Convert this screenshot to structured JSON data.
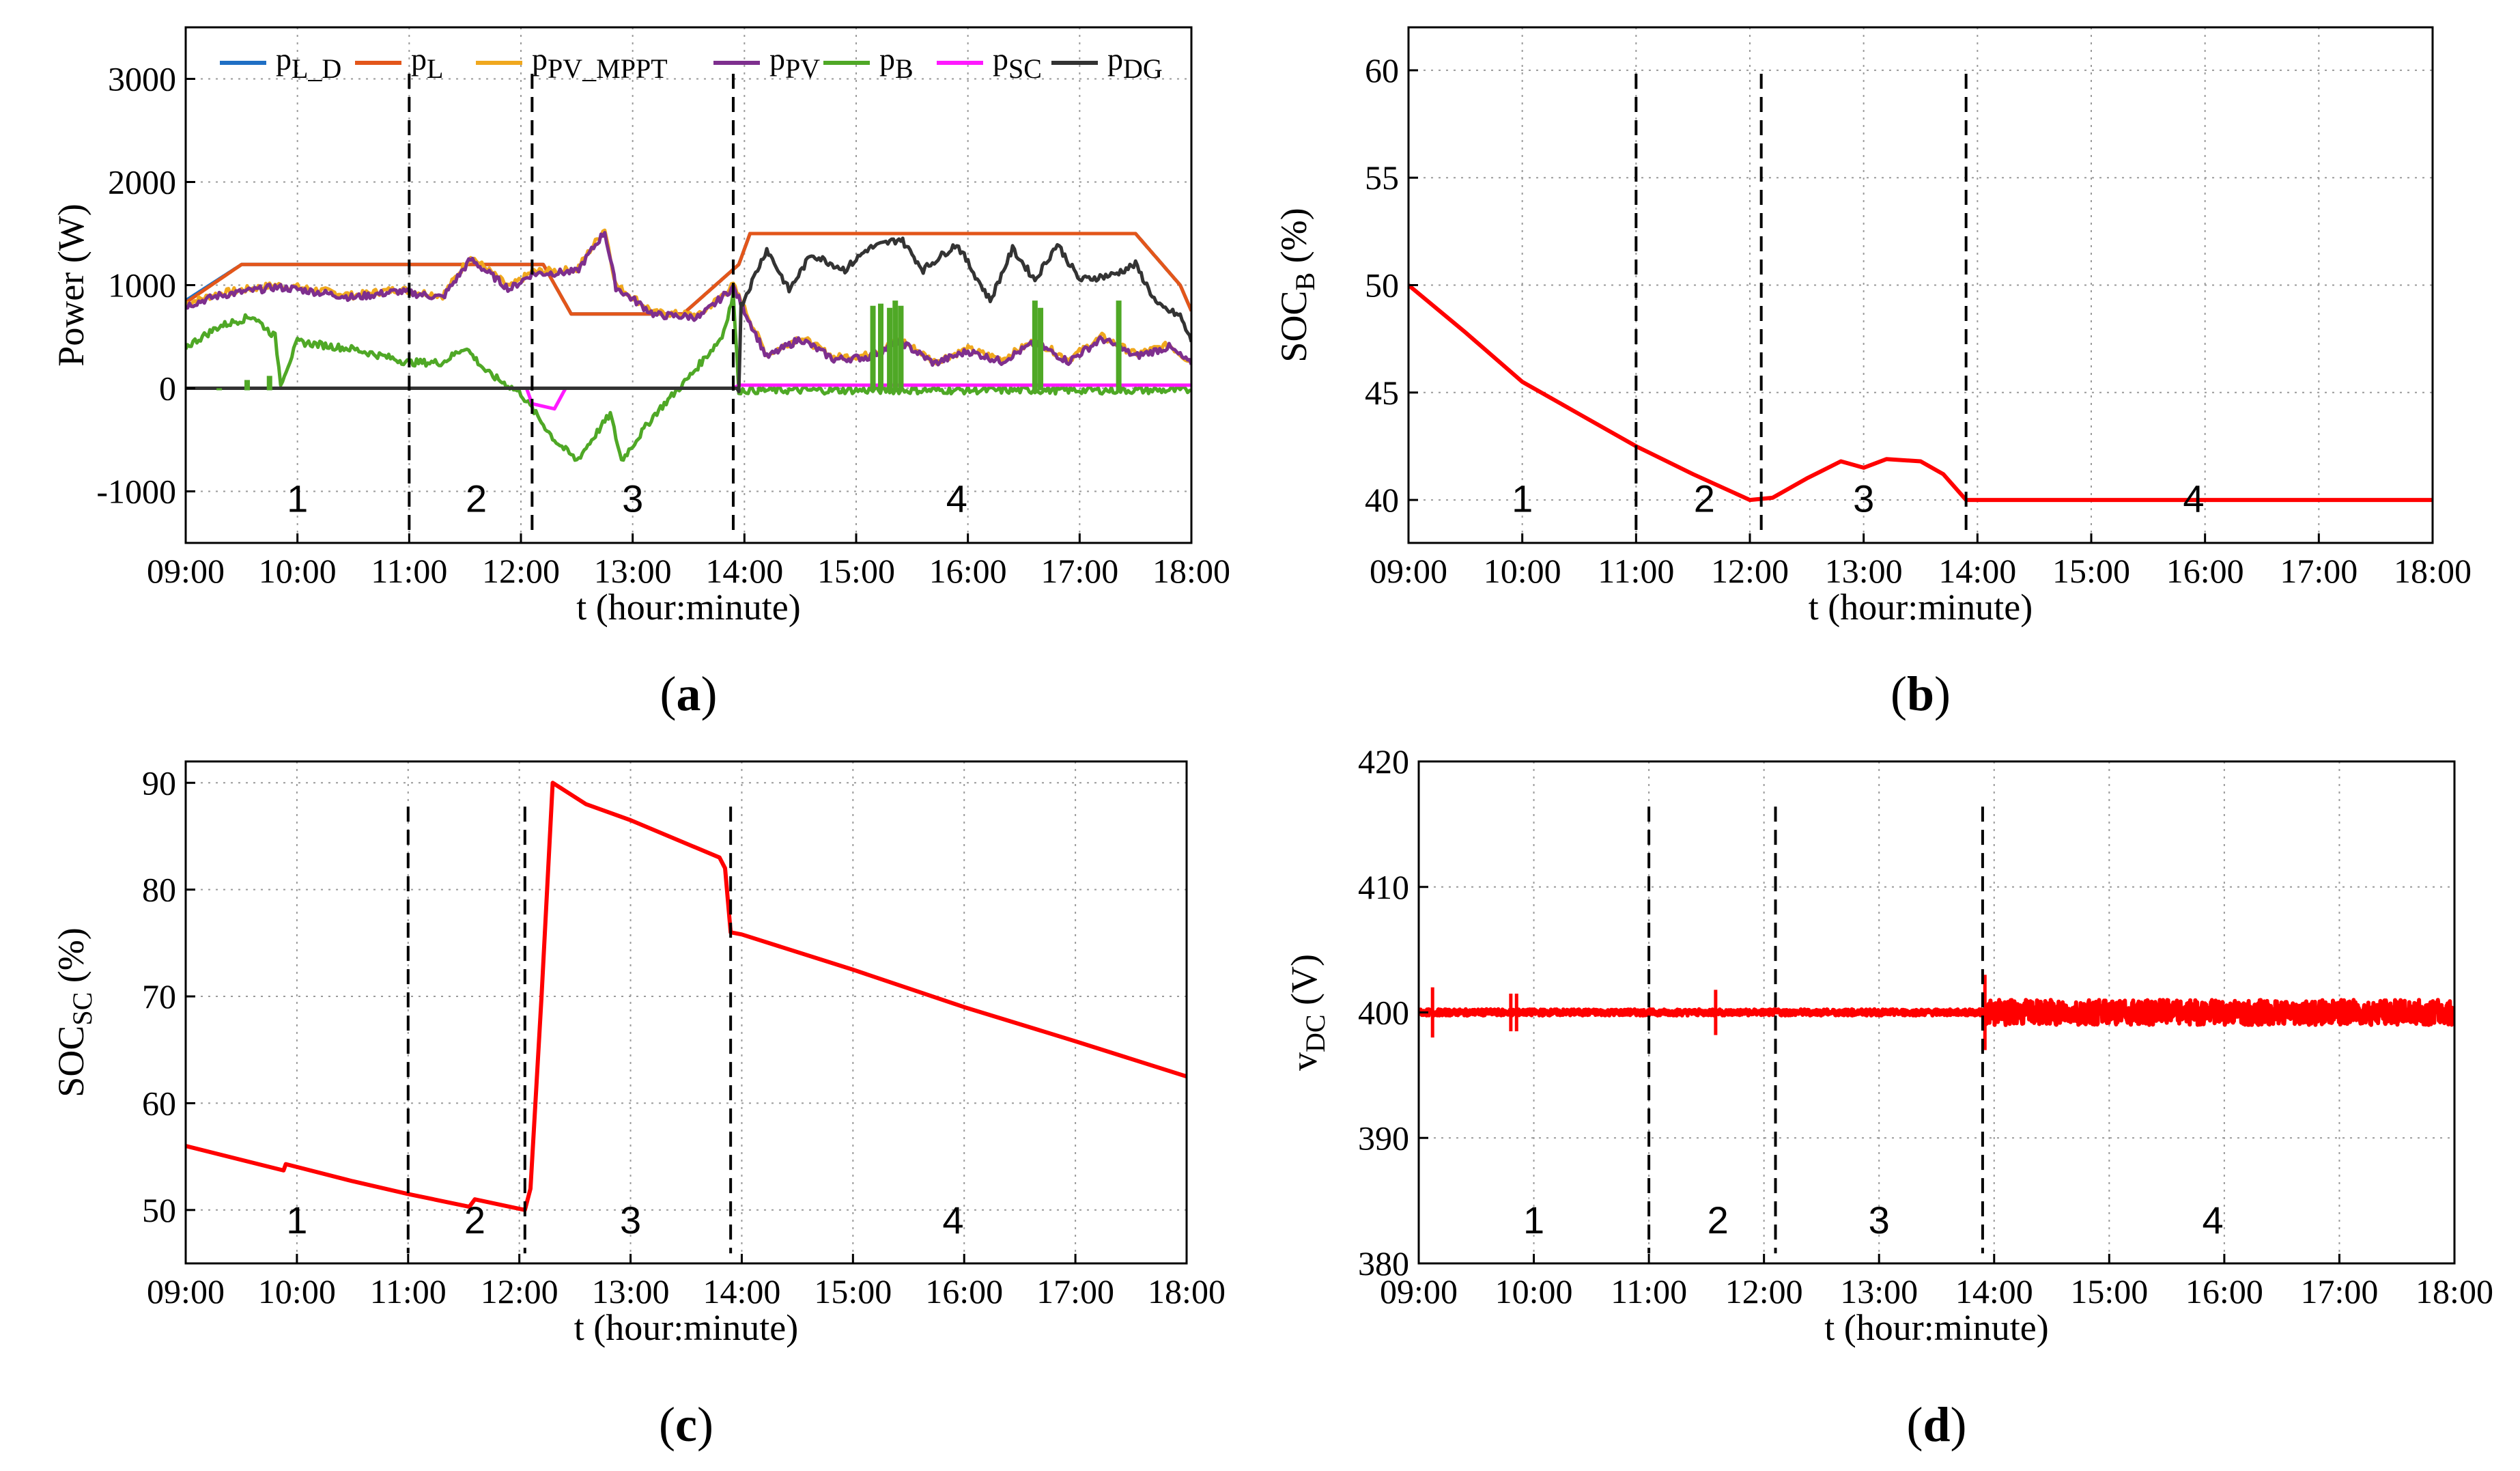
{
  "x_ticks": [
    "09:00",
    "10:00",
    "11:00",
    "12:00",
    "13:00",
    "14:00",
    "15:00",
    "16:00",
    "17:00",
    "18:00"
  ],
  "colors": {
    "p_L_D": "#1f6fc4",
    "p_L": "#e3561a",
    "p_PV_MPPT": "#f0a81e",
    "p_PV": "#7e2f8e",
    "p_B": "#4fa826",
    "p_SC": "#ff19ff",
    "p_DG": "#333333",
    "red": "#ff0000",
    "phase_line": "#000000"
  },
  "chart_data": [
    {
      "id": "a",
      "caption": "a",
      "type": "line",
      "ylabel": "Power (W)",
      "xlabel": "t (hour:minute)",
      "xlim": [
        9,
        18
      ],
      "ylim": [
        -1500,
        3500
      ],
      "y_ticks": [
        "-1000",
        "0",
        "1000",
        "2000",
        "3000"
      ],
      "y_tick_values": [
        -1000,
        0,
        1000,
        2000,
        3000
      ],
      "grid": true,
      "legend_position": "top",
      "phase_boundaries": [
        11.0,
        12.1,
        13.9
      ],
      "regions": [
        {
          "label": "1",
          "x": 10.0
        },
        {
          "label": "2",
          "x": 11.6
        },
        {
          "label": "3",
          "x": 13.0
        },
        {
          "label": "4",
          "x": 15.9
        }
      ],
      "series": [
        {
          "key": "p_L_D",
          "name": "p",
          "sub": "L_D",
          "x": [
            9.0,
            9.5,
            11.95,
            12.2,
            12.45,
            13.45,
            13.95,
            14.05,
            14.5,
            17.5,
            17.9,
            18.0
          ],
          "y": [
            850,
            1200,
            1200,
            1200,
            720,
            720,
            1200,
            1500,
            1500,
            1500,
            1000,
            750
          ]
        },
        {
          "key": "p_L",
          "name": "p",
          "sub": "L",
          "x": [
            9.0,
            9.5,
            11.95,
            12.2,
            12.45,
            13.45,
            13.95,
            14.05,
            14.5,
            17.5,
            17.9,
            18.0
          ],
          "y": [
            830,
            1200,
            1200,
            1200,
            720,
            720,
            1200,
            1500,
            1500,
            1500,
            1000,
            750
          ]
        },
        {
          "key": "p_PV_MPPT",
          "name": "p",
          "sub": "PV_MPPT",
          "x": [
            9.0,
            9.3,
            9.8,
            10.0,
            10.5,
            10.9,
            11.3,
            11.55,
            11.9,
            12.1,
            12.5,
            12.75,
            12.85,
            13.2,
            13.6,
            13.9,
            14.2,
            14.5,
            14.8,
            15.1,
            15.4,
            15.7,
            16.0,
            16.3,
            16.6,
            16.9,
            17.2,
            17.5,
            17.8,
            18.0
          ],
          "y": [
            820,
            920,
            1000,
            980,
            900,
            960,
            900,
            1280,
            980,
            1130,
            1150,
            1550,
            1000,
            730,
            710,
            1000,
            320,
            500,
            300,
            320,
            470,
            260,
            380,
            280,
            460,
            280,
            500,
            330,
            420,
            250
          ]
        },
        {
          "key": "p_PV",
          "name": "p",
          "sub": "PV",
          "x": [
            9.0,
            9.3,
            9.8,
            10.0,
            10.5,
            10.9,
            11.3,
            11.55,
            11.9,
            12.1,
            12.5,
            12.75,
            12.85,
            13.2,
            13.6,
            13.9,
            14.2,
            14.5,
            14.8,
            15.1,
            15.4,
            15.7,
            16.0,
            16.3,
            16.6,
            16.9,
            17.2,
            17.5,
            17.8,
            18.0
          ],
          "y": [
            800,
            900,
            980,
            960,
            880,
            940,
            880,
            1250,
            960,
            1110,
            1130,
            1520,
            980,
            710,
            690,
            980,
            300,
            480,
            280,
            300,
            450,
            240,
            360,
            260,
            440,
            260,
            480,
            310,
            400,
            230
          ]
        },
        {
          "key": "p_B",
          "name": "p",
          "sub": "B",
          "x": [
            9.0,
            9.3,
            9.6,
            9.8,
            9.85,
            10.0,
            10.5,
            11.0,
            11.3,
            11.5,
            11.7,
            12.0,
            12.3,
            12.5,
            12.8,
            12.9,
            13.2,
            13.5,
            13.8,
            13.9,
            13.95,
            18.0
          ],
          "y": [
            400,
            600,
            700,
            500,
            50,
            450,
            380,
            250,
            250,
            400,
            150,
            -50,
            -500,
            -700,
            -250,
            -700,
            -250,
            100,
            500,
            900,
            -20,
            -20
          ]
        },
        {
          "key": "p_SC",
          "name": "p",
          "sub": "SC",
          "x": [
            9.0,
            12.05,
            12.1,
            12.3,
            12.4,
            13.9,
            13.95,
            18.0
          ],
          "y": [
            0,
            0,
            -150,
            -200,
            0,
            0,
            30,
            30
          ]
        },
        {
          "key": "p_DG",
          "name": "p",
          "sub": "DG",
          "x": [
            9.0,
            13.95,
            13.97,
            14.2,
            14.4,
            14.6,
            14.9,
            15.1,
            15.4,
            15.6,
            15.9,
            16.2,
            16.4,
            16.6,
            16.8,
            17.0,
            17.3,
            17.5,
            17.7,
            17.9,
            18.0
          ],
          "y": [
            0,
            0,
            800,
            1350,
            950,
            1300,
            1150,
            1350,
            1450,
            1150,
            1400,
            850,
            1350,
            1050,
            1400,
            1050,
            1100,
            1200,
            800,
            700,
            450
          ]
        }
      ]
    },
    {
      "id": "b",
      "caption": "b",
      "type": "line",
      "ylabel": "SOC",
      "ylabel_sub": "B",
      "ylabel_unit": " (%)",
      "xlabel": "t (hour:minute)",
      "xlim": [
        9,
        18
      ],
      "ylim": [
        38,
        62
      ],
      "y_ticks": [
        "40",
        "45",
        "50",
        "55",
        "60"
      ],
      "y_tick_values": [
        40,
        45,
        50,
        55,
        60
      ],
      "grid": true,
      "phase_boundaries": [
        11.0,
        12.1,
        13.9
      ],
      "regions": [
        {
          "label": "1",
          "x": 10.0
        },
        {
          "label": "2",
          "x": 11.6
        },
        {
          "label": "3",
          "x": 13.0
        },
        {
          "label": "4",
          "x": 15.9
        }
      ],
      "series": [
        {
          "key": "soc_b",
          "name": "SOC_B",
          "x": [
            9.0,
            9.5,
            10.0,
            10.5,
            11.0,
            11.5,
            12.0,
            12.2,
            12.5,
            12.8,
            13.0,
            13.2,
            13.5,
            13.7,
            13.9,
            18.0
          ],
          "y": [
            50,
            47.8,
            45.5,
            44.0,
            42.5,
            41.2,
            40.0,
            40.1,
            41.0,
            41.8,
            41.5,
            41.9,
            41.8,
            41.2,
            40.0,
            40.0
          ]
        }
      ]
    },
    {
      "id": "c",
      "caption": "c",
      "type": "line",
      "ylabel": "SOC",
      "ylabel_sub": "SC",
      "ylabel_unit": " (%)",
      "xlabel": "t (hour:minute)",
      "xlim": [
        9,
        18
      ],
      "ylim": [
        45,
        92
      ],
      "y_ticks": [
        "50",
        "60",
        "70",
        "80",
        "90"
      ],
      "y_tick_values": [
        50,
        60,
        70,
        80,
        90
      ],
      "grid": true,
      "phase_boundaries": [
        11.0,
        12.05,
        13.9
      ],
      "regions": [
        {
          "label": "1",
          "x": 10.0
        },
        {
          "label": "2",
          "x": 11.6
        },
        {
          "label": "3",
          "x": 13.0
        },
        {
          "label": "4",
          "x": 15.9
        }
      ],
      "series": [
        {
          "key": "soc_sc",
          "name": "SOC_SC",
          "x": [
            9.0,
            9.88,
            9.9,
            10.5,
            11.0,
            11.55,
            11.6,
            12.05,
            12.1,
            12.2,
            12.3,
            12.6,
            13.0,
            13.8,
            13.85,
            13.9,
            14.0,
            15.0,
            16.0,
            17.0,
            18.0
          ],
          "y": [
            56,
            53.7,
            54.3,
            52.7,
            51.5,
            50.3,
            51.0,
            50.0,
            52.0,
            70.0,
            90.0,
            88.0,
            86.5,
            83.0,
            82.0,
            76.0,
            75.8,
            72.5,
            69.0,
            65.8,
            62.5
          ]
        }
      ]
    },
    {
      "id": "d",
      "caption": "d",
      "type": "line",
      "ylabel": "v",
      "ylabel_sub": "DC",
      "ylabel_unit": " (V)",
      "xlabel": "t (hour:minute)",
      "xlim": [
        9,
        18
      ],
      "ylim": [
        380,
        420
      ],
      "y_ticks": [
        "380",
        "390",
        "400",
        "410",
        "420"
      ],
      "y_tick_values": [
        380,
        390,
        400,
        410,
        420
      ],
      "grid": true,
      "phase_boundaries": [
        11.0,
        12.1,
        13.9
      ],
      "regions": [
        {
          "label": "1",
          "x": 10.0
        },
        {
          "label": "2",
          "x": 11.6
        },
        {
          "label": "3",
          "x": 13.0
        },
        {
          "label": "4",
          "x": 15.9
        }
      ],
      "series": [
        {
          "key": "v_dc",
          "name": "v_DC",
          "x": [
            9.0,
            18.0
          ],
          "y": [
            400,
            400
          ]
        }
      ]
    }
  ]
}
